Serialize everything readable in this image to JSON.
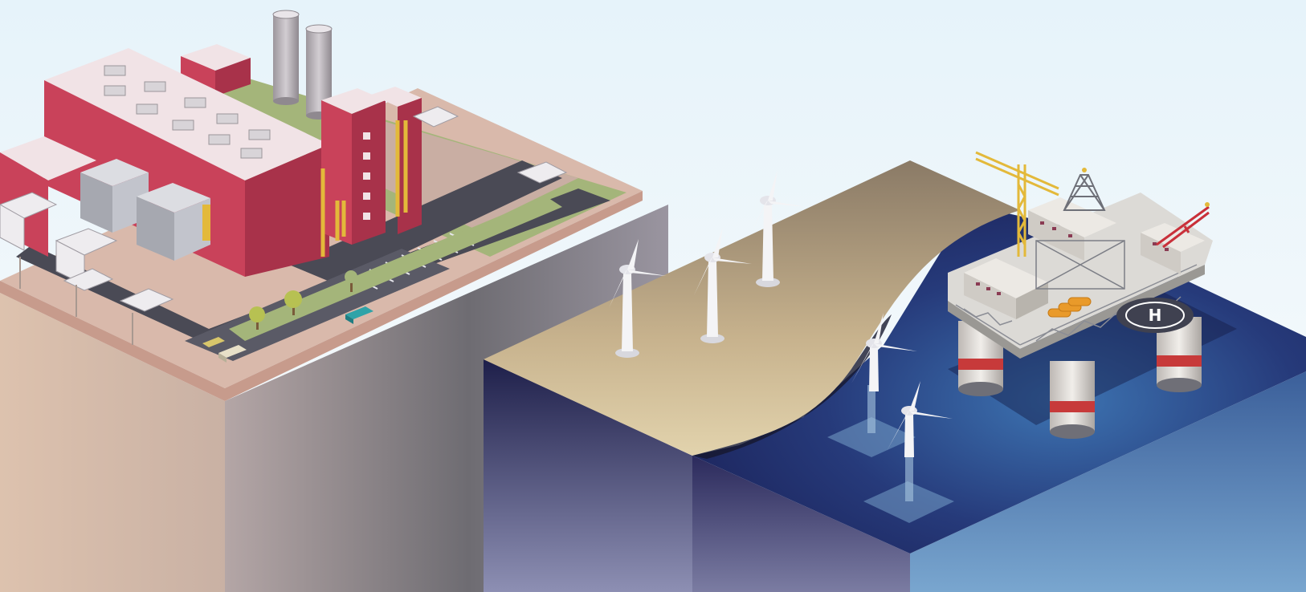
{
  "scene": {
    "sky_color": "#eaf5fb",
    "objects": {
      "power_plant": {
        "count": 1,
        "main_color": "#c9425a",
        "roof_color": "#f1e3e6"
      },
      "smokestacks": {
        "count": 2
      },
      "cooling_units": {
        "count": 2
      },
      "cars": {
        "count": 3,
        "colors": [
          "#2fa3a8",
          "#e8e0c8",
          "#d8c66b"
        ]
      },
      "trees": {
        "count": 3
      },
      "land_wind_turbines": {
        "count": 3
      },
      "offshore_wind_turbines": {
        "count": 2
      },
      "oil_platform": {
        "count": 1,
        "crane_color": "#e3b93a",
        "helipad_label": "H"
      }
    },
    "colors": {
      "cliff_light": "#e0c6b4",
      "cliff_shadow": "#6b6a70",
      "sand": "#c9b48f",
      "ocean_deep": "#1d2252",
      "ocean_light": "#6a9cc9",
      "grass": "#a4b57a",
      "road": "#4a4a55"
    }
  }
}
